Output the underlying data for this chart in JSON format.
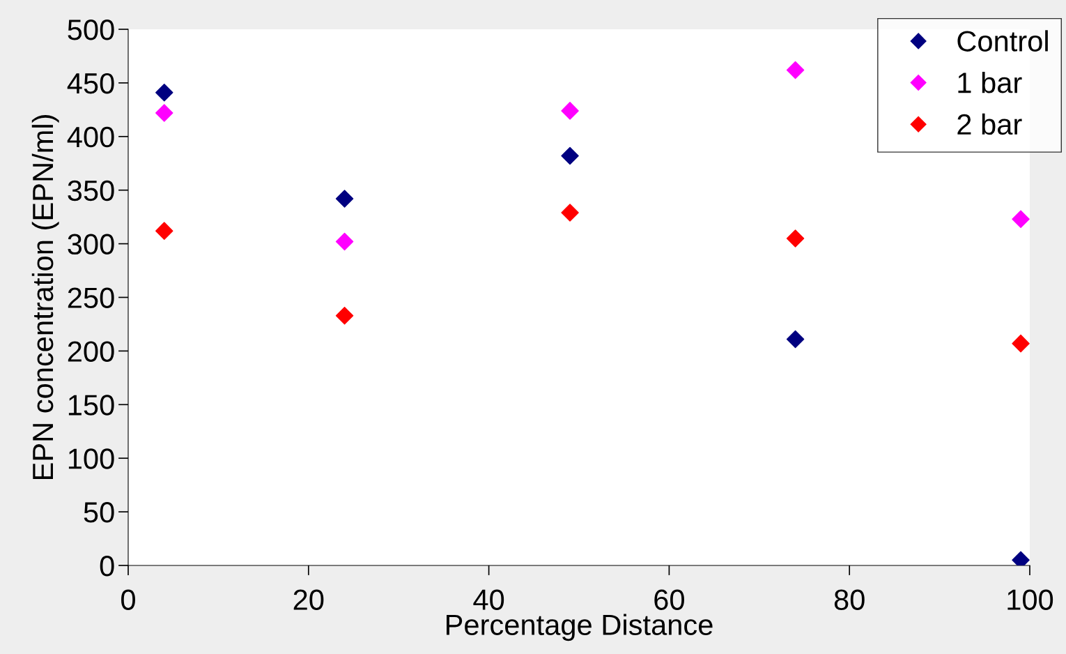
{
  "chart_data": {
    "type": "scatter",
    "xlabel": "Percentage Distance",
    "ylabel": "EPN concentration (EPN/ml)",
    "x": [
      4,
      24,
      49,
      74,
      99
    ],
    "series": [
      {
        "name": "Control",
        "color": "#000080",
        "values": [
          441,
          342,
          382,
          211,
          5
        ]
      },
      {
        "name": "1 bar",
        "color": "#ff00ff",
        "values": [
          422,
          302,
          424,
          462,
          323
        ]
      },
      {
        "name": "2 bar",
        "color": "#ff0000",
        "values": [
          312,
          233,
          329,
          305,
          207
        ]
      }
    ],
    "xlim": [
      0,
      100
    ],
    "xticks": [
      0,
      20,
      40,
      60,
      80,
      100
    ],
    "ylim": [
      0,
      500
    ],
    "yticks": [
      0,
      50,
      100,
      150,
      200,
      250,
      300,
      350,
      400,
      450,
      500
    ],
    "marker": "diamond",
    "grid": false,
    "legend": "top right"
  }
}
